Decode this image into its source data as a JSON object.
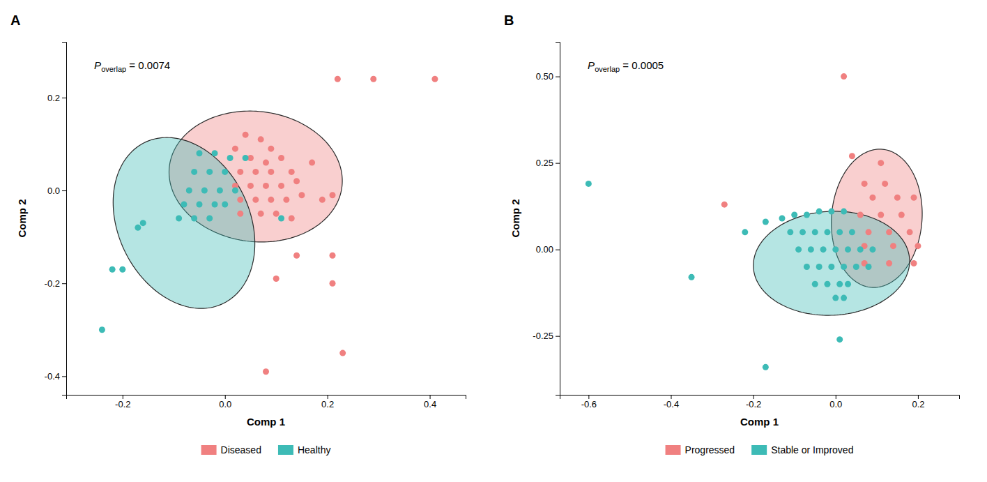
{
  "chart_data": [
    {
      "type": "scatter",
      "title": "A",
      "xlabel": "Comp 1",
      "ylabel": "Comp 2",
      "xlim": [
        -0.31,
        0.47
      ],
      "ylim": [
        -0.44,
        0.32
      ],
      "xticks": [
        -0.2,
        {
          "value": 0,
          "label": "0.0"
        },
        0.2,
        0.4
      ],
      "yticks": [
        -0.4,
        -0.2,
        {
          "value": 0,
          "label": "0.0"
        },
        0.2
      ],
      "legend": "bottom",
      "annotations": [
        {
          "text": "P",
          "subscript": "overlap",
          "after": " = 0.0074"
        }
      ],
      "series": [
        {
          "name": "Diseased",
          "color": "#F08080",
          "x": [
            0.04,
            0.07,
            0.02,
            0.09,
            0.05,
            0.08,
            0.11,
            0.03,
            0.06,
            0.09,
            0.13,
            0.02,
            0.05,
            0.08,
            0.11,
            0.14,
            0.03,
            0.06,
            0.09,
            0.12,
            0.15,
            0.17,
            0.03,
            0.07,
            0.1,
            0.13,
            0.22,
            0.29,
            0.41,
            0.19,
            0.21,
            0.14,
            0.21,
            0.1,
            0.21,
            0.08,
            0.23
          ],
          "values": [
            0.12,
            0.11,
            0.09,
            0.09,
            0.07,
            0.06,
            0.07,
            0.04,
            0.04,
            0.04,
            0.04,
            0.01,
            0.01,
            0.01,
            0.01,
            0.02,
            -0.02,
            -0.02,
            -0.02,
            -0.02,
            -0.01,
            0.06,
            -0.05,
            -0.05,
            -0.05,
            -0.06,
            0.24,
            0.24,
            0.24,
            -0.02,
            -0.01,
            -0.14,
            -0.14,
            -0.19,
            -0.2,
            -0.39,
            -0.35
          ],
          "ellipse": {
            "cx": 0.06,
            "cy": 0.03,
            "width": 0.34,
            "height": 0.28,
            "angle": -10
          }
        },
        {
          "name": "Healthy",
          "color": "#3DBBB6",
          "x": [
            -0.05,
            -0.02,
            0.01,
            0.04,
            -0.06,
            -0.03,
            0,
            -0.07,
            -0.04,
            -0.01,
            0.02,
            -0.08,
            -0.05,
            -0.02,
            0,
            -0.09,
            -0.06,
            -0.03,
            -0.17,
            -0.16,
            -0.2,
            -0.22,
            0.11,
            -0.24
          ],
          "values": [
            0.08,
            0.08,
            0.07,
            0.07,
            0.04,
            0.04,
            0.04,
            0,
            0,
            0,
            0,
            -0.03,
            -0.03,
            -0.03,
            -0.03,
            -0.06,
            -0.06,
            -0.06,
            -0.08,
            -0.07,
            -0.17,
            -0.17,
            -0.06,
            -0.3
          ],
          "ellipse": {
            "cx": -0.08,
            "cy": -0.07,
            "width": 0.26,
            "height": 0.38,
            "angle": 20
          }
        }
      ]
    },
    {
      "type": "scatter",
      "title": "B",
      "xlabel": "Comp 1",
      "ylabel": "Comp 2",
      "xlim": [
        -0.67,
        0.3
      ],
      "ylim": [
        -0.42,
        0.6
      ],
      "xticks": [
        -0.6,
        -0.4,
        -0.2,
        {
          "value": 0,
          "label": "0.0"
        },
        0.2
      ],
      "yticks": [
        -0.25,
        {
          "value": 0,
          "label": "0.00"
        },
        0.25,
        {
          "value": 0.5,
          "label": "0.50"
        }
      ],
      "legend": "bottom",
      "annotations": [
        {
          "text": "P",
          "subscript": "overlap",
          "after": " = 0.0005"
        }
      ],
      "series": [
        {
          "name": "Progressed",
          "color": "#F08080",
          "x": [
            0.02,
            0.04,
            0.11,
            0.07,
            0.12,
            0.09,
            0.15,
            0.19,
            0.06,
            0.11,
            0.16,
            0.08,
            0.13,
            0.18,
            0.07,
            0.14,
            0.2,
            0.07,
            0.13,
            0.19,
            -0.27
          ],
          "values": [
            0.5,
            0.27,
            0.25,
            0.19,
            0.19,
            0.15,
            0.15,
            0.15,
            0.1,
            0.1,
            0.1,
            0.05,
            0.05,
            0.05,
            0.01,
            0.01,
            0.01,
            -0.04,
            -0.04,
            -0.04,
            0.13
          ],
          "ellipse": {
            "cx": 0.1,
            "cy": 0.09,
            "width": 0.22,
            "height": 0.4,
            "angle": -3
          }
        },
        {
          "name": "Stable or Improved",
          "color": "#3DBBB6",
          "x": [
            -0.6,
            -0.35,
            -0.22,
            -0.17,
            -0.13,
            -0.1,
            -0.07,
            -0.04,
            -0.01,
            0.02,
            -0.11,
            -0.08,
            -0.05,
            -0.02,
            0.01,
            0.04,
            -0.09,
            -0.06,
            -0.03,
            0,
            0.03,
            0.06,
            0.09,
            -0.07,
            -0.04,
            -0.01,
            0.02,
            0.05,
            0.08,
            -0.05,
            -0.02,
            0.01,
            0.03,
            0,
            0.02,
            0.01,
            -0.17
          ],
          "values": [
            0.19,
            -0.08,
            0.05,
            0.08,
            0.09,
            0.1,
            0.1,
            0.11,
            0.11,
            0.11,
            0.05,
            0.05,
            0.05,
            0.05,
            0.05,
            0.05,
            0,
            0,
            0,
            0,
            0,
            0,
            0,
            -0.05,
            -0.05,
            -0.05,
            -0.05,
            -0.05,
            -0.05,
            -0.1,
            -0.1,
            -0.1,
            -0.1,
            -0.14,
            -0.14,
            -0.26,
            -0.34
          ],
          "ellipse": {
            "cx": -0.01,
            "cy": -0.04,
            "width": 0.38,
            "height": 0.3,
            "angle": 5
          }
        }
      ]
    }
  ]
}
